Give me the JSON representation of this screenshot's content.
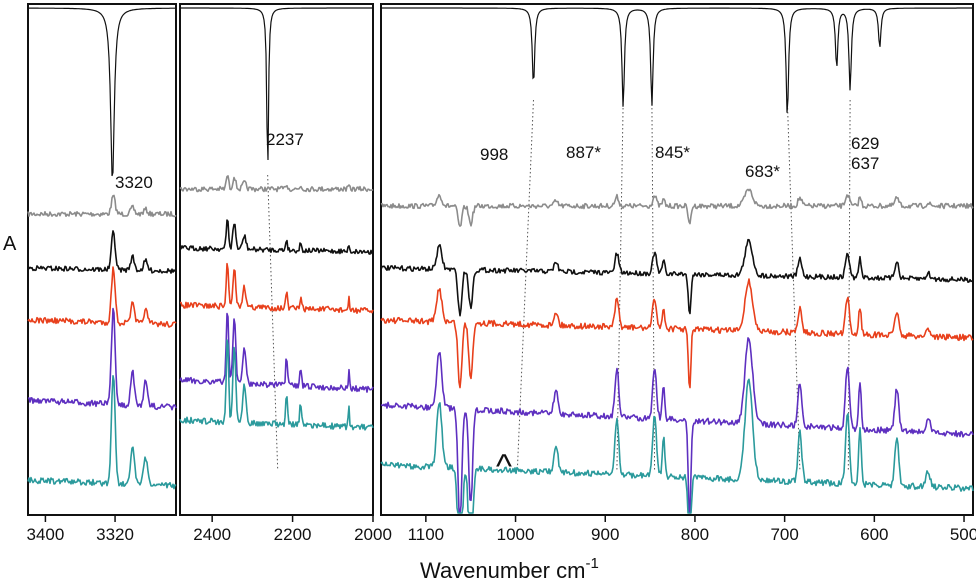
{
  "chart_data": {
    "type": "line",
    "title": "",
    "xlabel": "Wavenumber cm",
    "xlabel_superscript": "-1",
    "ylabel": "A",
    "panels": [
      {
        "name": "panel-1",
        "xlim": [
          3420,
          3250
        ],
        "ticks": [
          3400,
          3320
        ],
        "peak_labels": [
          "3320"
        ]
      },
      {
        "name": "panel-2",
        "xlim": [
          2480,
          2000
        ],
        "ticks": [
          2400,
          2200,
          2000
        ],
        "peak_labels": [
          "2237"
        ]
      },
      {
        "name": "panel-3",
        "xlim": [
          1150,
          490
        ],
        "ticks": [
          1100,
          1000,
          900,
          800,
          700,
          600,
          500
        ],
        "peak_labels": [
          "998",
          "887*",
          "845*",
          "683*",
          "629",
          "637"
        ]
      }
    ],
    "reference_spectrum": {
      "name": "calculated",
      "color": "#111111",
      "peaks": [
        3323,
        2262,
        980,
        880,
        848,
        697,
        642,
        627,
        594
      ]
    },
    "series": [
      {
        "name": "spectrum-1",
        "color": "#8c8c8c"
      },
      {
        "name": "spectrum-2",
        "color": "#111111"
      },
      {
        "name": "spectrum-3",
        "color": "#e8401c"
      },
      {
        "name": "spectrum-4",
        "color": "#5e30c0"
      },
      {
        "name": "spectrum-5",
        "color": "#2b9a9c"
      }
    ],
    "annotations": [
      {
        "text": "^",
        "near_x": 1000,
        "panel": "panel-3"
      }
    ]
  }
}
